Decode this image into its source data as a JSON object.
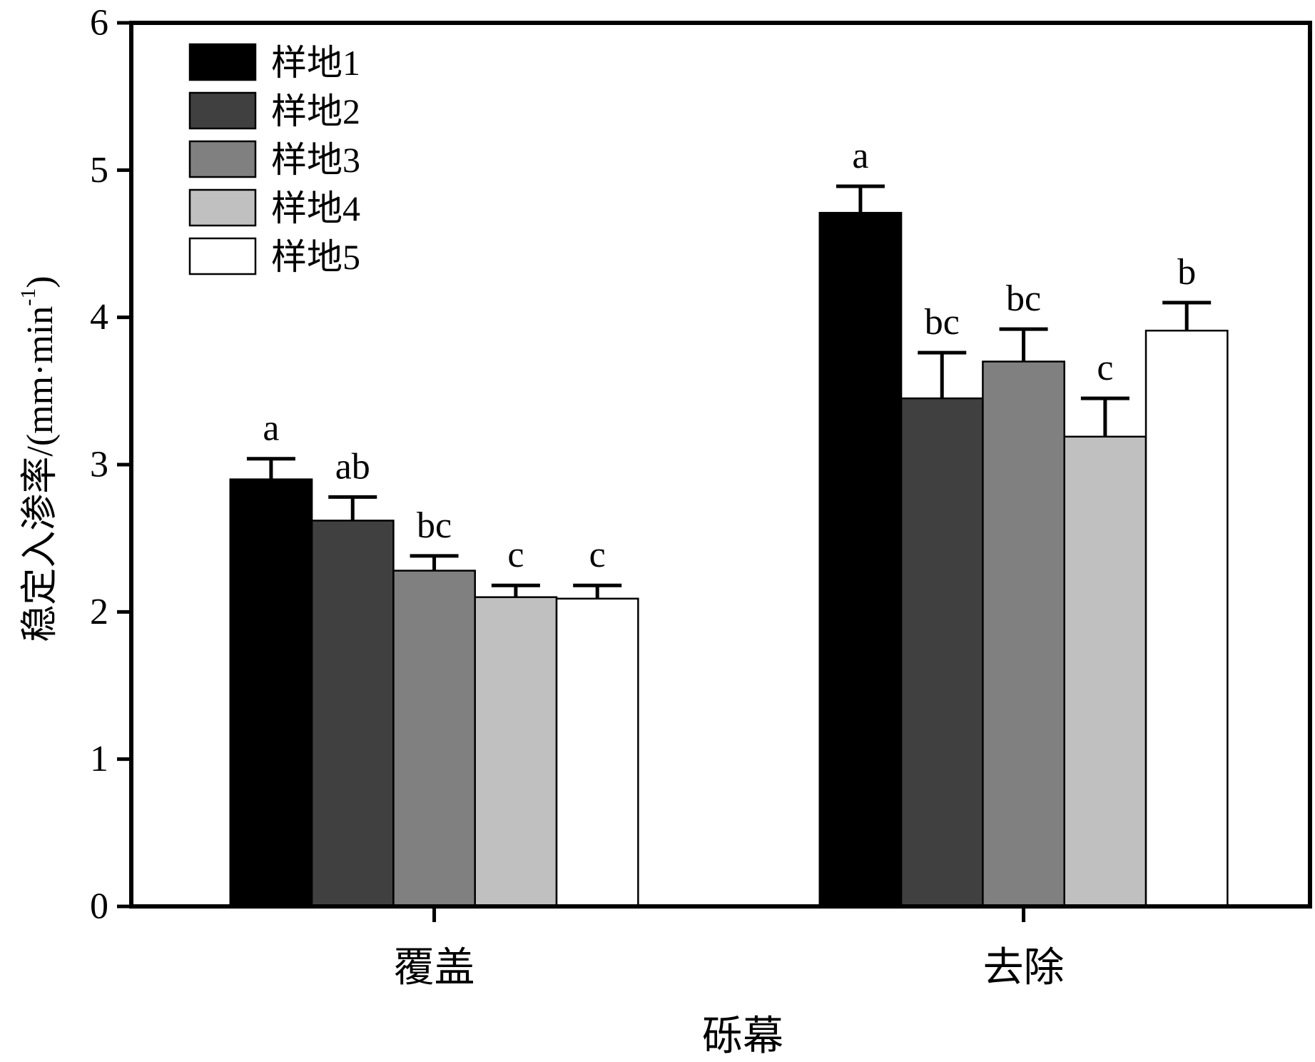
{
  "chart_data": {
    "type": "bar",
    "xlabel": "砾幕",
    "ylabel": "稳定入渗率/(mm·min",
    "ylabel_superscript": "-1",
    "ylabel_suffix": ")",
    "categories": [
      "覆盖",
      "去除"
    ],
    "ylim": [
      0,
      6
    ],
    "yticks": [
      0,
      1,
      2,
      3,
      4,
      5,
      6
    ],
    "grid": false,
    "legend_position": "top-left",
    "series": [
      {
        "name": "样地1",
        "color": "#000000",
        "values": [
          2.9,
          4.71
        ],
        "errors": [
          0.14,
          0.18
        ],
        "labels": [
          "a",
          "a"
        ]
      },
      {
        "name": "样地2",
        "color": "#404040",
        "values": [
          2.62,
          3.45
        ],
        "errors": [
          0.16,
          0.31
        ],
        "labels": [
          "ab",
          "bc"
        ]
      },
      {
        "name": "样地3",
        "color": "#808080",
        "values": [
          2.28,
          3.7
        ],
        "errors": [
          0.1,
          0.22
        ],
        "labels": [
          "bc",
          "bc"
        ]
      },
      {
        "name": "样地4",
        "color": "#c0c0c0",
        "values": [
          2.1,
          3.19
        ],
        "errors": [
          0.08,
          0.26
        ],
        "labels": [
          "c",
          "c"
        ]
      },
      {
        "name": "样地5",
        "color": "#ffffff",
        "values": [
          2.09,
          3.91
        ],
        "errors": [
          0.09,
          0.19
        ],
        "labels": [
          "c",
          "b"
        ]
      }
    ]
  }
}
